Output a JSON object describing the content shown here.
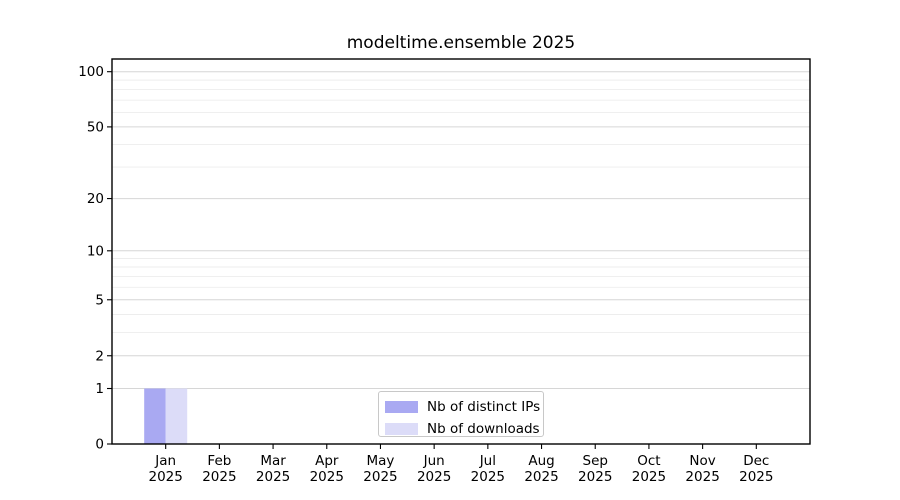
{
  "chart_data": {
    "type": "bar",
    "title": "modeltime.ensemble 2025",
    "categories": [
      "Jan",
      "Feb",
      "Mar",
      "Apr",
      "May",
      "Jun",
      "Jul",
      "Aug",
      "Sep",
      "Oct",
      "Nov",
      "Dec"
    ],
    "category_year": "2025",
    "series": [
      {
        "name": "Nb of distinct IPs",
        "color": "#a9a9f2",
        "values": [
          1,
          0,
          0,
          0,
          0,
          0,
          0,
          0,
          0,
          0,
          0,
          0
        ]
      },
      {
        "name": "Nb of downloads",
        "color": "#dcdcf8",
        "values": [
          1,
          0,
          0,
          0,
          0,
          0,
          0,
          0,
          0,
          0,
          0,
          0
        ]
      }
    ],
    "xlabel": "",
    "ylabel": "",
    "yscale": "log1p",
    "yticks": [
      0,
      1,
      2,
      5,
      10,
      20,
      50,
      100
    ],
    "minor_gridlines": [
      3,
      4,
      6,
      7,
      8,
      9,
      30,
      40,
      60,
      70,
      80,
      90
    ],
    "ylim": [
      0,
      115
    ],
    "grid": "horizontal",
    "legend_position": "bottom-center",
    "colors": {
      "major_grid": "#d6d6d6",
      "minor_grid": "#ededed",
      "spine": "#000000",
      "bar_distinct_ips": "#a9a9f2",
      "bar_downloads": "#dcdcf8"
    }
  }
}
